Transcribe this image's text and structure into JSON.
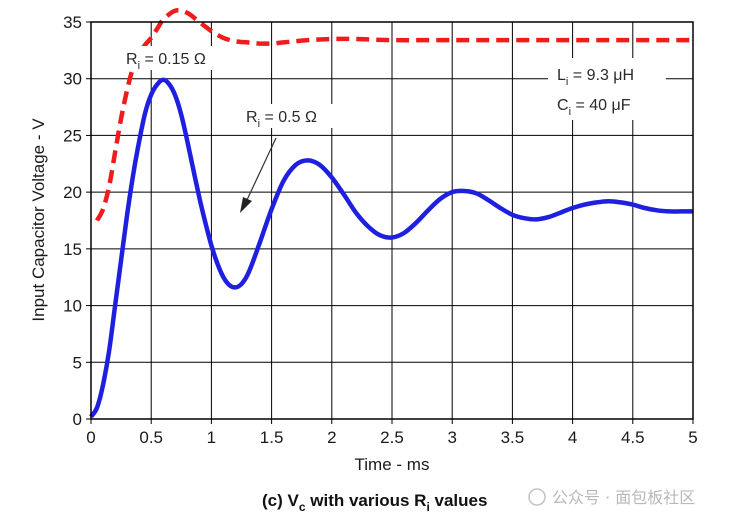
{
  "chart_data": {
    "type": "line",
    "xlabel": "Time - ms",
    "ylabel": "Input Capacitor Voltage - V",
    "xlim": [
      0,
      5
    ],
    "ylim": [
      0,
      35
    ],
    "xticks": [
      "0",
      "0.5",
      "1",
      "1.5",
      "2",
      "2.5",
      "3",
      "3.5",
      "4",
      "4.5",
      "5"
    ],
    "yticks": [
      "0",
      "5",
      "10",
      "15",
      "20",
      "25",
      "30",
      "35"
    ],
    "grid": true,
    "series": [
      {
        "name": "Ri = 0.15 Ω",
        "style": "dashed",
        "color": "#ee1c1c",
        "x": [
          0.05,
          0.1,
          0.15,
          0.2,
          0.25,
          0.3,
          0.35,
          0.4,
          0.45,
          0.5,
          0.55,
          0.6,
          0.7,
          0.8,
          0.9,
          1.0,
          1.1,
          1.2,
          1.3,
          1.4,
          1.5,
          1.6,
          1.8,
          2.0,
          2.2,
          2.5,
          3.0,
          3.5,
          4.0,
          4.5,
          5.0
        ],
        "y": [
          17.5,
          18.5,
          20.5,
          23.5,
          26.5,
          29.0,
          31.0,
          32.2,
          33.0,
          33.6,
          34.4,
          35.2,
          36.0,
          35.8,
          35.0,
          34.2,
          33.6,
          33.3,
          33.2,
          33.1,
          33.1,
          33.2,
          33.4,
          33.5,
          33.5,
          33.4,
          33.4,
          33.4,
          33.4,
          33.4,
          33.4
        ]
      },
      {
        "name": "Ri = 0.5 Ω",
        "style": "solid",
        "color": "#1f1fe0",
        "x": [
          0,
          0.05,
          0.1,
          0.15,
          0.2,
          0.25,
          0.3,
          0.35,
          0.4,
          0.45,
          0.5,
          0.55,
          0.6,
          0.65,
          0.7,
          0.75,
          0.8,
          0.85,
          0.9,
          0.95,
          1.0,
          1.05,
          1.1,
          1.15,
          1.2,
          1.25,
          1.3,
          1.35,
          1.4,
          1.5,
          1.6,
          1.7,
          1.8,
          1.9,
          2.0,
          2.1,
          2.2,
          2.3,
          2.4,
          2.5,
          2.6,
          2.7,
          2.8,
          2.9,
          3.0,
          3.1,
          3.2,
          3.3,
          3.4,
          3.5,
          3.6,
          3.7,
          3.8,
          3.9,
          4.0,
          4.1,
          4.2,
          4.3,
          4.4,
          4.5,
          4.6,
          4.7,
          4.8,
          4.9,
          5.0
        ],
        "y": [
          0.2,
          1.0,
          3.0,
          6.0,
          10.0,
          14.0,
          18.0,
          21.5,
          24.5,
          27.0,
          28.6,
          29.5,
          29.9,
          29.5,
          28.5,
          26.8,
          24.5,
          22.0,
          19.5,
          17.3,
          15.3,
          13.7,
          12.5,
          11.8,
          11.6,
          11.9,
          12.7,
          14.0,
          15.5,
          18.5,
          21.0,
          22.4,
          22.8,
          22.4,
          21.3,
          19.8,
          18.2,
          17.0,
          16.2,
          16.0,
          16.4,
          17.3,
          18.4,
          19.4,
          20.0,
          20.1,
          19.9,
          19.3,
          18.6,
          18.0,
          17.7,
          17.6,
          17.8,
          18.2,
          18.6,
          18.9,
          19.1,
          19.2,
          19.1,
          18.9,
          18.6,
          18.4,
          18.3,
          18.3,
          18.3
        ]
      }
    ],
    "annotations": {
      "ri_high": {
        "base": "R",
        "sub": "i",
        "text": " = 0.15 Ω"
      },
      "ri_low": {
        "base": "R",
        "sub": "i",
        "text": " = 0.5 Ω"
      },
      "li": {
        "base": "L",
        "sub": "i",
        "text": " = 9.3 μH"
      },
      "ci": {
        "base": "C",
        "sub": "i",
        "text": " = 40 μF"
      }
    }
  },
  "caption": {
    "part1": "(c) V",
    "sub1": "c",
    "part2": " with various R",
    "sub2": "i",
    "part3": " values"
  },
  "watermark": "公众号 · 面包板社区",
  "colors": {
    "dashed_series": "#ee1c1c",
    "solid_series": "#1f1fe0",
    "grid": "#000000"
  }
}
